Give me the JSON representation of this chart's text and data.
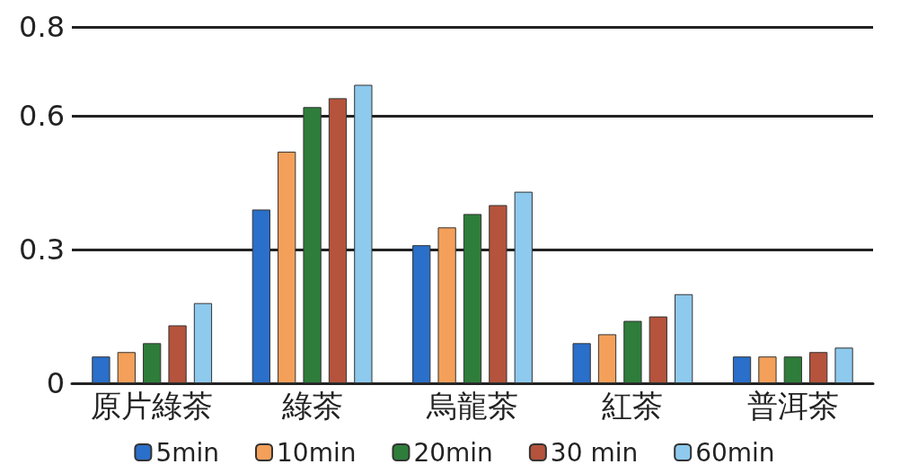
{
  "chart_data": {
    "type": "bar",
    "categories": [
      "原片綠茶",
      "綠茶",
      "烏龍茶",
      "紅茶",
      "普洱茶"
    ],
    "series": [
      {
        "name": "5min",
        "color": "#2a6fc9",
        "values": [
          0.06,
          0.39,
          0.31,
          0.09,
          0.06
        ]
      },
      {
        "name": "10min",
        "color": "#f4a05a",
        "values": [
          0.07,
          0.52,
          0.35,
          0.11,
          0.06
        ]
      },
      {
        "name": "20min",
        "color": "#2e7d3a",
        "values": [
          0.09,
          0.62,
          0.38,
          0.14,
          0.06
        ]
      },
      {
        "name": "30 min",
        "color": "#b5533c",
        "values": [
          0.13,
          0.64,
          0.4,
          0.15,
          0.07
        ]
      },
      {
        "name": "60min",
        "color": "#8ec9ee",
        "values": [
          0.18,
          0.67,
          0.43,
          0.2,
          0.08
        ]
      }
    ],
    "ylim": [
      0,
      0.8
    ],
    "yticks": [
      0,
      0.3,
      0.6,
      0.8
    ],
    "grid": "y",
    "legend": "bottom"
  }
}
